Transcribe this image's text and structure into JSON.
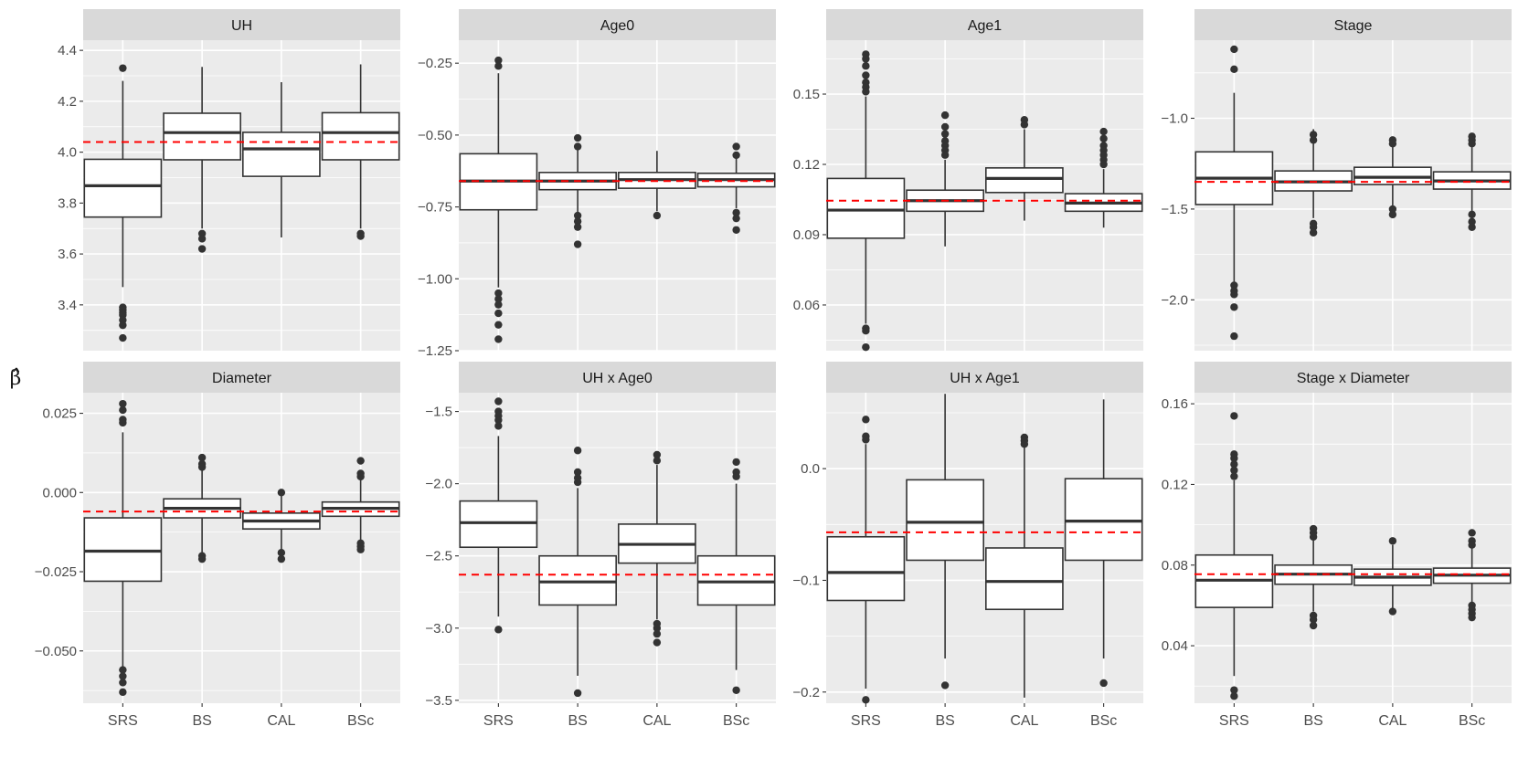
{
  "chart_data": {
    "type": "boxplot",
    "ylabel": "β̂",
    "categories": [
      "SRS",
      "BS",
      "CAL",
      "BSc"
    ],
    "style": {
      "panel_bg": "#ebebeb",
      "strip_bg": "#d9d9d9",
      "grid_major": "#ffffff",
      "box_line": "#333333",
      "box_fill": "#ffffff",
      "reference_line": "#ff0000",
      "axis_text": "#4d4d4d",
      "strip_text": "#1a1a1a"
    },
    "panels": [
      {
        "title": "UH",
        "ylim": [
          3.22,
          4.44
        ],
        "yticks": [
          3.4,
          3.6,
          3.8,
          4.0,
          4.2,
          4.4
        ],
        "ytick_labels": [
          "3.4",
          "3.6",
          "3.8",
          "4.0",
          "4.2",
          "4.4"
        ],
        "reference": 4.04,
        "boxes": [
          {
            "q1": 3.745,
            "median": 3.868,
            "q3": 3.972,
            "whislo": 3.47,
            "whishi": 4.28,
            "outliers": [
              4.33,
              3.39,
              3.38,
              3.37,
              3.36,
              3.34,
              3.32,
              3.27
            ]
          },
          {
            "q1": 3.97,
            "median": 4.077,
            "q3": 4.153,
            "whislo": 3.7,
            "whishi": 4.335,
            "outliers": [
              3.68,
              3.66,
              3.62
            ]
          },
          {
            "q1": 3.905,
            "median": 4.013,
            "q3": 4.078,
            "whislo": 3.665,
            "whishi": 4.275,
            "outliers": []
          },
          {
            "q1": 3.97,
            "median": 4.077,
            "q3": 4.155,
            "whislo": 3.7,
            "whishi": 4.345,
            "outliers": [
              3.68,
              3.67
            ]
          }
        ]
      },
      {
        "title": "Age0",
        "ylim": [
          -1.25,
          -0.17
        ],
        "yticks": [
          -1.25,
          -1.0,
          -0.75,
          -0.5,
          -0.25
        ],
        "ytick_labels": [
          "−1.25",
          "−1.00",
          "−0.75",
          "−0.50",
          "−0.25"
        ],
        "reference": -0.66,
        "boxes": [
          {
            "q1": -0.76,
            "median": -0.66,
            "q3": -0.565,
            "whislo": -1.03,
            "whishi": -0.285,
            "outliers": [
              -0.24,
              -0.26,
              -1.05,
              -1.07,
              -1.09,
              -1.12,
              -1.16,
              -1.21
            ]
          },
          {
            "q1": -0.69,
            "median": -0.66,
            "q3": -0.63,
            "whislo": -0.77,
            "whishi": -0.55,
            "outliers": [
              -0.51,
              -0.54,
              -0.78,
              -0.8,
              -0.82,
              -0.88
            ]
          },
          {
            "q1": -0.685,
            "median": -0.655,
            "q3": -0.63,
            "whislo": -0.765,
            "whishi": -0.555,
            "outliers": [
              -0.78
            ]
          },
          {
            "q1": -0.68,
            "median": -0.655,
            "q3": -0.633,
            "whislo": -0.755,
            "whishi": -0.56,
            "outliers": [
              -0.54,
              -0.57,
              -0.77,
              -0.79,
              -0.83
            ]
          }
        ]
      },
      {
        "title": "Age1",
        "ylim": [
          0.0405,
          0.173
        ],
        "yticks": [
          0.06,
          0.09,
          0.12,
          0.15
        ],
        "ytick_labels": [
          "0.06",
          "0.09",
          "0.12",
          "0.15"
        ],
        "reference": 0.1045,
        "boxes": [
          {
            "q1": 0.0885,
            "median": 0.1005,
            "q3": 0.114,
            "whislo": 0.052,
            "whishi": 0.149,
            "outliers": [
              0.167,
              0.165,
              0.162,
              0.158,
              0.155,
              0.153,
              0.151,
              0.05,
              0.049,
              0.042
            ]
          },
          {
            "q1": 0.1,
            "median": 0.1045,
            "q3": 0.109,
            "whislo": 0.085,
            "whishi": 0.122,
            "outliers": [
              0.141,
              0.136,
              0.133,
              0.13,
              0.128,
              0.126,
              0.124
            ]
          },
          {
            "q1": 0.108,
            "median": 0.114,
            "q3": 0.1185,
            "whislo": 0.096,
            "whishi": 0.135,
            "outliers": [
              0.139,
              0.137
            ]
          },
          {
            "q1": 0.1,
            "median": 0.1035,
            "q3": 0.1075,
            "whislo": 0.093,
            "whishi": 0.118,
            "outliers": [
              0.134,
              0.131,
              0.128,
              0.126,
              0.124,
              0.122,
              0.12
            ]
          }
        ]
      },
      {
        "title": "Stage",
        "ylim": [
          -2.28,
          -0.57
        ],
        "yticks": [
          -2.0,
          -1.5,
          -1.0
        ],
        "ytick_labels": [
          "−2.0",
          "−1.5",
          "−1.0"
        ],
        "reference": -1.35,
        "boxes": [
          {
            "q1": -1.475,
            "median": -1.33,
            "q3": -1.185,
            "whislo": -1.9,
            "whishi": -0.86,
            "outliers": [
              -0.62,
              -0.73,
              -1.92,
              -1.95,
              -1.97,
              -2.04,
              -2.2
            ]
          },
          {
            "q1": -1.4,
            "median": -1.35,
            "q3": -1.29,
            "whislo": -1.55,
            "whishi": -1.06,
            "outliers": [
              -1.09,
              -1.12,
              -1.58,
              -1.6,
              -1.63
            ]
          },
          {
            "q1": -1.365,
            "median": -1.325,
            "q3": -1.27,
            "whislo": -1.49,
            "whishi": -1.14,
            "outliers": [
              -1.12,
              -1.14,
              -1.5,
              -1.53
            ]
          },
          {
            "q1": -1.39,
            "median": -1.345,
            "q3": -1.295,
            "whislo": -1.51,
            "whishi": -1.16,
            "outliers": [
              -1.1,
              -1.12,
              -1.14,
              -1.53,
              -1.57,
              -1.6
            ]
          }
        ]
      },
      {
        "title": "Diameter",
        "ylim": [
          -0.0665,
          0.0315
        ],
        "yticks": [
          -0.05,
          -0.025,
          0.0,
          0.025
        ],
        "ytick_labels": [
          "−0.050",
          "−0.025",
          "0.000",
          "0.025"
        ],
        "reference": -0.006,
        "boxes": [
          {
            "q1": -0.028,
            "median": -0.0185,
            "q3": -0.008,
            "whislo": -0.055,
            "whishi": 0.019,
            "outliers": [
              0.028,
              0.026,
              0.023,
              0.022,
              -0.056,
              -0.058,
              -0.06,
              -0.063
            ]
          },
          {
            "q1": -0.008,
            "median": -0.005,
            "q3": -0.002,
            "whislo": -0.019,
            "whishi": 0.007,
            "outliers": [
              0.011,
              0.009,
              0.008,
              -0.02,
              -0.021
            ]
          },
          {
            "q1": -0.0115,
            "median": -0.009,
            "q3": -0.0065,
            "whislo": -0.018,
            "whishi": -0.001,
            "outliers": [
              0.0,
              -0.019,
              -0.021
            ]
          },
          {
            "q1": -0.0075,
            "median": -0.005,
            "q3": -0.003,
            "whislo": -0.015,
            "whishi": 0.004,
            "outliers": [
              0.01,
              0.006,
              0.005,
              -0.016,
              -0.017,
              -0.018
            ]
          }
        ]
      },
      {
        "title": "UH x Age0",
        "ylim": [
          -3.52,
          -1.37
        ],
        "yticks": [
          -3.5,
          -3.0,
          -2.5,
          -2.0,
          -1.5
        ],
        "ytick_labels": [
          "−3.5",
          "−3.0",
          "−2.5",
          "−2.0",
          "−1.5"
        ],
        "reference": -2.63,
        "boxes": [
          {
            "q1": -2.44,
            "median": -2.27,
            "q3": -2.12,
            "whislo": -2.92,
            "whishi": -1.67,
            "outliers": [
              -1.43,
              -1.5,
              -1.53,
              -1.56,
              -1.6,
              -3.01
            ]
          },
          {
            "q1": -2.84,
            "median": -2.68,
            "q3": -2.5,
            "whislo": -3.33,
            "whishi": -2.03,
            "outliers": [
              -1.77,
              -1.92,
              -1.96,
              -1.99,
              -3.45
            ]
          },
          {
            "q1": -2.55,
            "median": -2.42,
            "q3": -2.28,
            "whislo": -2.94,
            "whishi": -1.87,
            "outliers": [
              -1.8,
              -1.84,
              -2.97,
              -3.0,
              -3.04,
              -3.1
            ]
          },
          {
            "q1": -2.84,
            "median": -2.68,
            "q3": -2.5,
            "whislo": -3.29,
            "whishi": -2.0,
            "outliers": [
              -1.85,
              -1.92,
              -1.95,
              -3.43
            ]
          }
        ]
      },
      {
        "title": "UH x Age1",
        "ylim": [
          -0.21,
          0.068
        ],
        "yticks": [
          -0.2,
          -0.1,
          0.0
        ],
        "ytick_labels": [
          "−0.2",
          "−0.1",
          "0.0"
        ],
        "reference": -0.057,
        "boxes": [
          {
            "q1": -0.118,
            "median": -0.093,
            "q3": -0.061,
            "whislo": -0.197,
            "whishi": 0.022,
            "outliers": [
              0.044,
              0.029,
              0.026,
              -0.207
            ]
          },
          {
            "q1": -0.082,
            "median": -0.048,
            "q3": -0.01,
            "whislo": -0.17,
            "whishi": 0.067,
            "outliers": [
              -0.194
            ]
          },
          {
            "q1": -0.126,
            "median": -0.101,
            "q3": -0.071,
            "whislo": -0.205,
            "whishi": 0.02,
            "outliers": [
              0.028,
              0.025,
              0.022
            ]
          },
          {
            "q1": -0.082,
            "median": -0.047,
            "q3": -0.009,
            "whislo": -0.17,
            "whishi": 0.062,
            "outliers": [
              -0.192
            ]
          }
        ]
      },
      {
        "title": "Stage x Diameter",
        "ylim": [
          0.0115,
          0.1655
        ],
        "yticks": [
          0.04,
          0.08,
          0.12,
          0.16
        ],
        "ytick_labels": [
          "0.04",
          "0.08",
          "0.12",
          "0.16"
        ],
        "reference": 0.0755,
        "boxes": [
          {
            "q1": 0.059,
            "median": 0.0725,
            "q3": 0.085,
            "whislo": 0.025,
            "whishi": 0.122,
            "outliers": [
              0.154,
              0.135,
              0.133,
              0.13,
              0.127,
              0.124,
              0.018,
              0.015
            ]
          },
          {
            "q1": 0.0705,
            "median": 0.0755,
            "q3": 0.08,
            "whislo": 0.057,
            "whishi": 0.093,
            "outliers": [
              0.098,
              0.096,
              0.094,
              0.055,
              0.053,
              0.05
            ]
          },
          {
            "q1": 0.07,
            "median": 0.074,
            "q3": 0.078,
            "whislo": 0.058,
            "whishi": 0.09,
            "outliers": [
              0.092,
              0.057
            ]
          },
          {
            "q1": 0.071,
            "median": 0.075,
            "q3": 0.0785,
            "whislo": 0.06,
            "whishi": 0.09,
            "outliers": [
              0.096,
              0.092,
              0.09,
              0.06,
              0.058,
              0.056,
              0.054
            ]
          }
        ]
      }
    ]
  }
}
